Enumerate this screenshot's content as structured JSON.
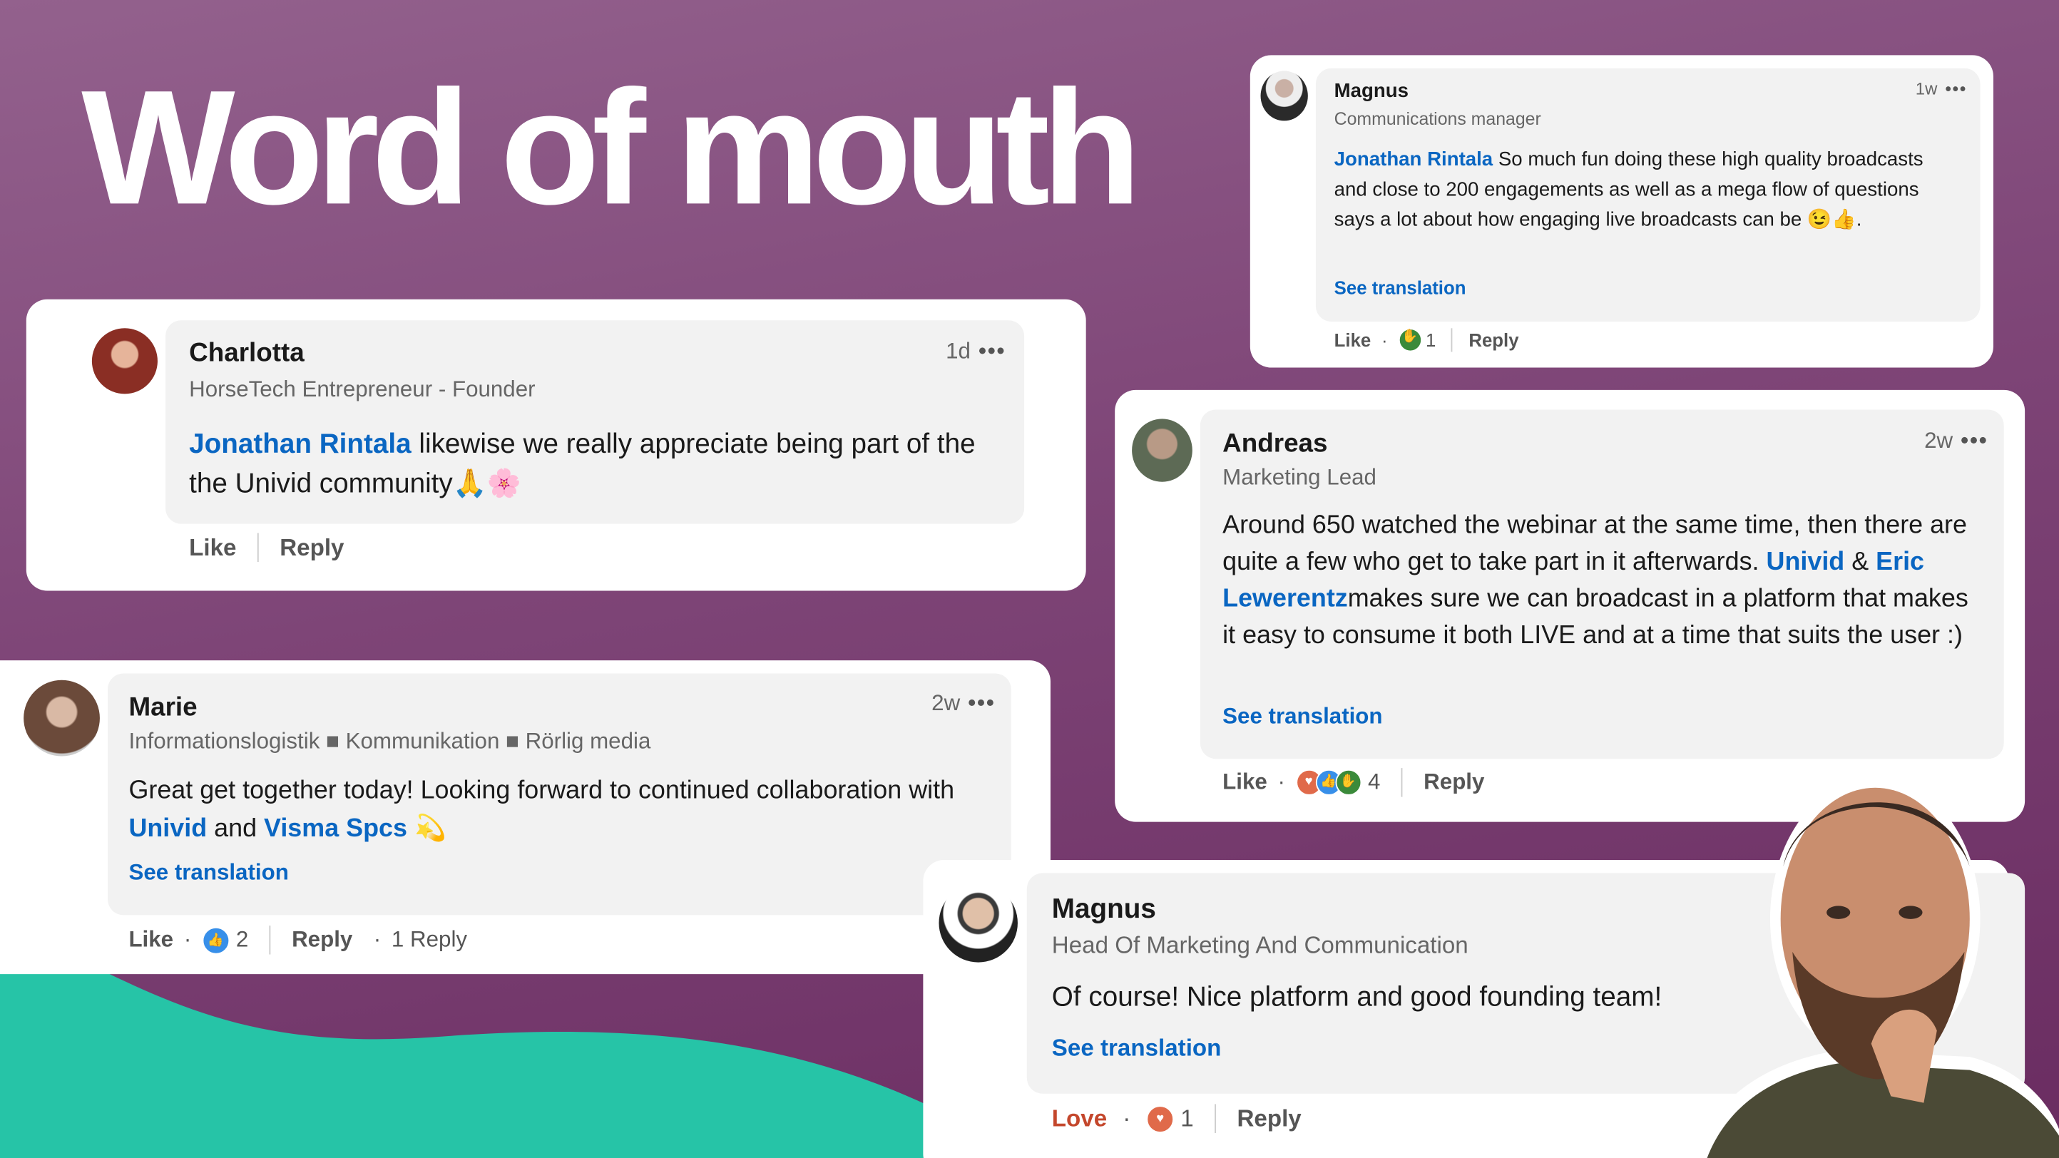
{
  "title": "Word of mouth",
  "colors": {
    "link": "#0a66c2",
    "background": "#7e4577",
    "accent_teal": "#26c4a7",
    "love": "#c4472c"
  },
  "comments": [
    {
      "name": "Charlotta",
      "headline": "HorseTech Entrepreneur - Founder",
      "time": "1d",
      "more": "•••",
      "mention": "Jonathan Rintala",
      "text": " likewise we really appreciate being part of the the Univid community🙏🌸",
      "like": "Like",
      "reply": "Reply"
    },
    {
      "name": "Magnus",
      "headline": "Communications manager",
      "time": "1w",
      "more": "•••",
      "mention": "Jonathan Rintala",
      "text": " So much fun doing these high quality broadcasts and close to 200 engagements as well as a mega flow of questions says a lot about how engaging live broadcasts can be 😉👍.",
      "see_translation": "See translation",
      "like": "Like",
      "reaction_count": "1",
      "reply": "Reply",
      "reactions": [
        "celebrate"
      ]
    },
    {
      "name": "Andreas",
      "headline": "Marketing Lead",
      "time": "2w",
      "more": "•••",
      "text1": "Around 650 watched the webinar at the same time, then there are quite a few who get to take part in it afterwards. ",
      "mention1": "Univid",
      "text2": " & ",
      "mention2": "Eric Lewerentz",
      "text3": "makes sure we can broadcast in a platform that makes it easy to consume it both LIVE and at a time that suits the user :)",
      "see_translation": "See translation",
      "like": "Like",
      "reaction_count": "4",
      "reply": "Reply",
      "reactions": [
        "love",
        "like",
        "celebrate"
      ]
    },
    {
      "name": "Marie",
      "headline": "Informationslogistik ■ Kommunikation ■ Rörlig media",
      "time": "2w",
      "more": "•••",
      "text1": "Great get together today! Looking forward to continued collaboration with ",
      "mention1": "Univid",
      "text2": " and ",
      "mention2": "Visma Spcs",
      "text3": " 💫",
      "see_translation": "See translation",
      "like": "Like",
      "reaction_count": "2",
      "reply": "Reply",
      "replies": "1 Reply",
      "reactions": [
        "like"
      ]
    },
    {
      "name": "Magnus",
      "headline": "Head Of Marketing And Communication",
      "text": "Of course! Nice platform and good founding team!",
      "see_translation": "See translation",
      "like": "Love",
      "reaction_count": "1",
      "reply": "Reply",
      "reactions": [
        "love"
      ]
    }
  ]
}
